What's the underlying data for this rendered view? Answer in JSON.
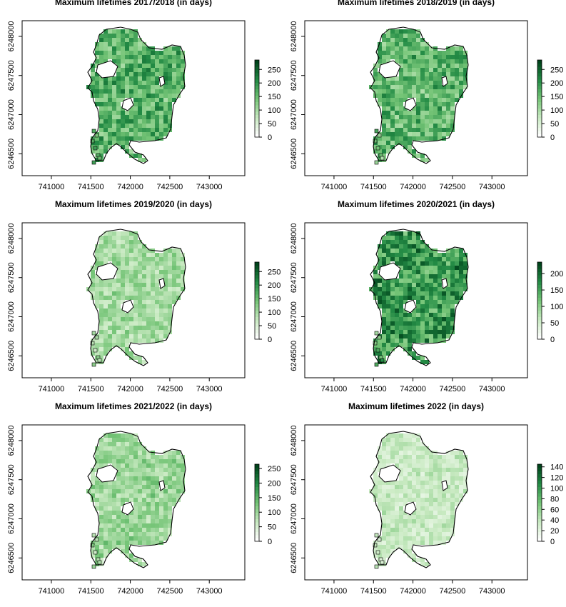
{
  "chart_data": [
    {
      "type": "heatmap",
      "title": "Maximum lifetimes 2017/2018 (in days)",
      "xlabel": "",
      "ylabel": "",
      "xlim": [
        740630,
        743450
      ],
      "ylim": [
        6246220,
        6248200
      ],
      "x_ticks": [
        "741000",
        "741500",
        "742000",
        "742500",
        "743000"
      ],
      "y_ticks": [
        "6246500",
        "6247000",
        "6247500",
        "6248000"
      ],
      "colorbar": {
        "min": 0,
        "max": 285,
        "ticks": [
          "0",
          "50",
          "100",
          "150",
          "200",
          "250"
        ]
      },
      "intensity": 0.62
    },
    {
      "type": "heatmap",
      "title": "Maximum lifetimes 2018/2019 (in days)",
      "xlabel": "",
      "ylabel": "",
      "xlim": [
        740630,
        743450
      ],
      "ylim": [
        6246220,
        6248200
      ],
      "x_ticks": [
        "741000",
        "741500",
        "742000",
        "742500",
        "743000"
      ],
      "y_ticks": [
        "6246500",
        "6247000",
        "6247500",
        "6248000"
      ],
      "colorbar": {
        "min": 0,
        "max": 285,
        "ticks": [
          "0",
          "50",
          "100",
          "150",
          "200",
          "250"
        ]
      },
      "intensity": 0.6
    },
    {
      "type": "heatmap",
      "title": "Maximum lifetimes 2019/2020 (in days)",
      "xlabel": "",
      "ylabel": "",
      "xlim": [
        740630,
        743450
      ],
      "ylim": [
        6246220,
        6248200
      ],
      "x_ticks": [
        "741000",
        "741500",
        "742000",
        "742500",
        "743000"
      ],
      "y_ticks": [
        "6246500",
        "6247000",
        "6247500",
        "6248000"
      ],
      "colorbar": {
        "min": 0,
        "max": 285,
        "ticks": [
          "0",
          "50",
          "100",
          "150",
          "200",
          "250"
        ]
      },
      "intensity": 0.4
    },
    {
      "type": "heatmap",
      "title": "Maximum lifetimes 2020/2021 (in days)",
      "xlabel": "",
      "ylabel": "",
      "xlim": [
        740630,
        743450
      ],
      "ylim": [
        6246220,
        6248200
      ],
      "x_ticks": [
        "741000",
        "741500",
        "742000",
        "742500",
        "743000"
      ],
      "y_ticks": [
        "6246500",
        "6247000",
        "6247500",
        "6248000"
      ],
      "colorbar": {
        "min": 0,
        "max": 235,
        "ticks": [
          "0",
          "50",
          "100",
          "150",
          "200"
        ]
      },
      "intensity": 0.72
    },
    {
      "type": "heatmap",
      "title": "Maximum lifetimes 2021/2022 (in days)",
      "xlabel": "",
      "ylabel": "",
      "xlim": [
        740630,
        743450
      ],
      "ylim": [
        6246220,
        6248200
      ],
      "x_ticks": [
        "741000",
        "741500",
        "742000",
        "742500",
        "743000"
      ],
      "y_ticks": [
        "6246500",
        "6247000",
        "6247500",
        "6248000"
      ],
      "colorbar": {
        "min": 0,
        "max": 265,
        "ticks": [
          "0",
          "50",
          "100",
          "150",
          "200",
          "250"
        ]
      },
      "intensity": 0.42
    },
    {
      "type": "heatmap",
      "title": "Maximum lifetimes 2022 (in days)",
      "xlabel": "",
      "ylabel": "",
      "xlim": [
        740630,
        743450
      ],
      "ylim": [
        6246220,
        6248200
      ],
      "x_ticks": [
        "741000",
        "741500",
        "742000",
        "742500",
        "743000"
      ],
      "y_ticks": [
        "6246500",
        "6247000",
        "6247500",
        "6248000"
      ],
      "colorbar": {
        "min": 0,
        "max": 145,
        "ticks": [
          "0",
          "20",
          "40",
          "60",
          "80",
          "100",
          "120",
          "140"
        ]
      },
      "intensity": 0.28
    }
  ]
}
